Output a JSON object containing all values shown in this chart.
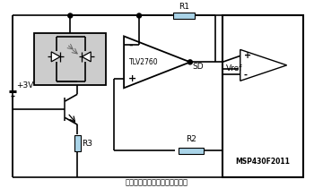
{
  "title": "图一　煙霧偉測器的系統方塊圖",
  "bg_color": "#ffffff",
  "box_outline": "#000000",
  "resistor_color": "#aad4e8",
  "gray_fill": "#cccccc",
  "tlv_label": "TLV2760",
  "sd_label": "SD",
  "msp_label": "MSP430F2011",
  "vref_label": "Vref",
  "r1_label": "R1",
  "r2_label": "R2",
  "r3_label": "R3",
  "v3_label": "+3V"
}
